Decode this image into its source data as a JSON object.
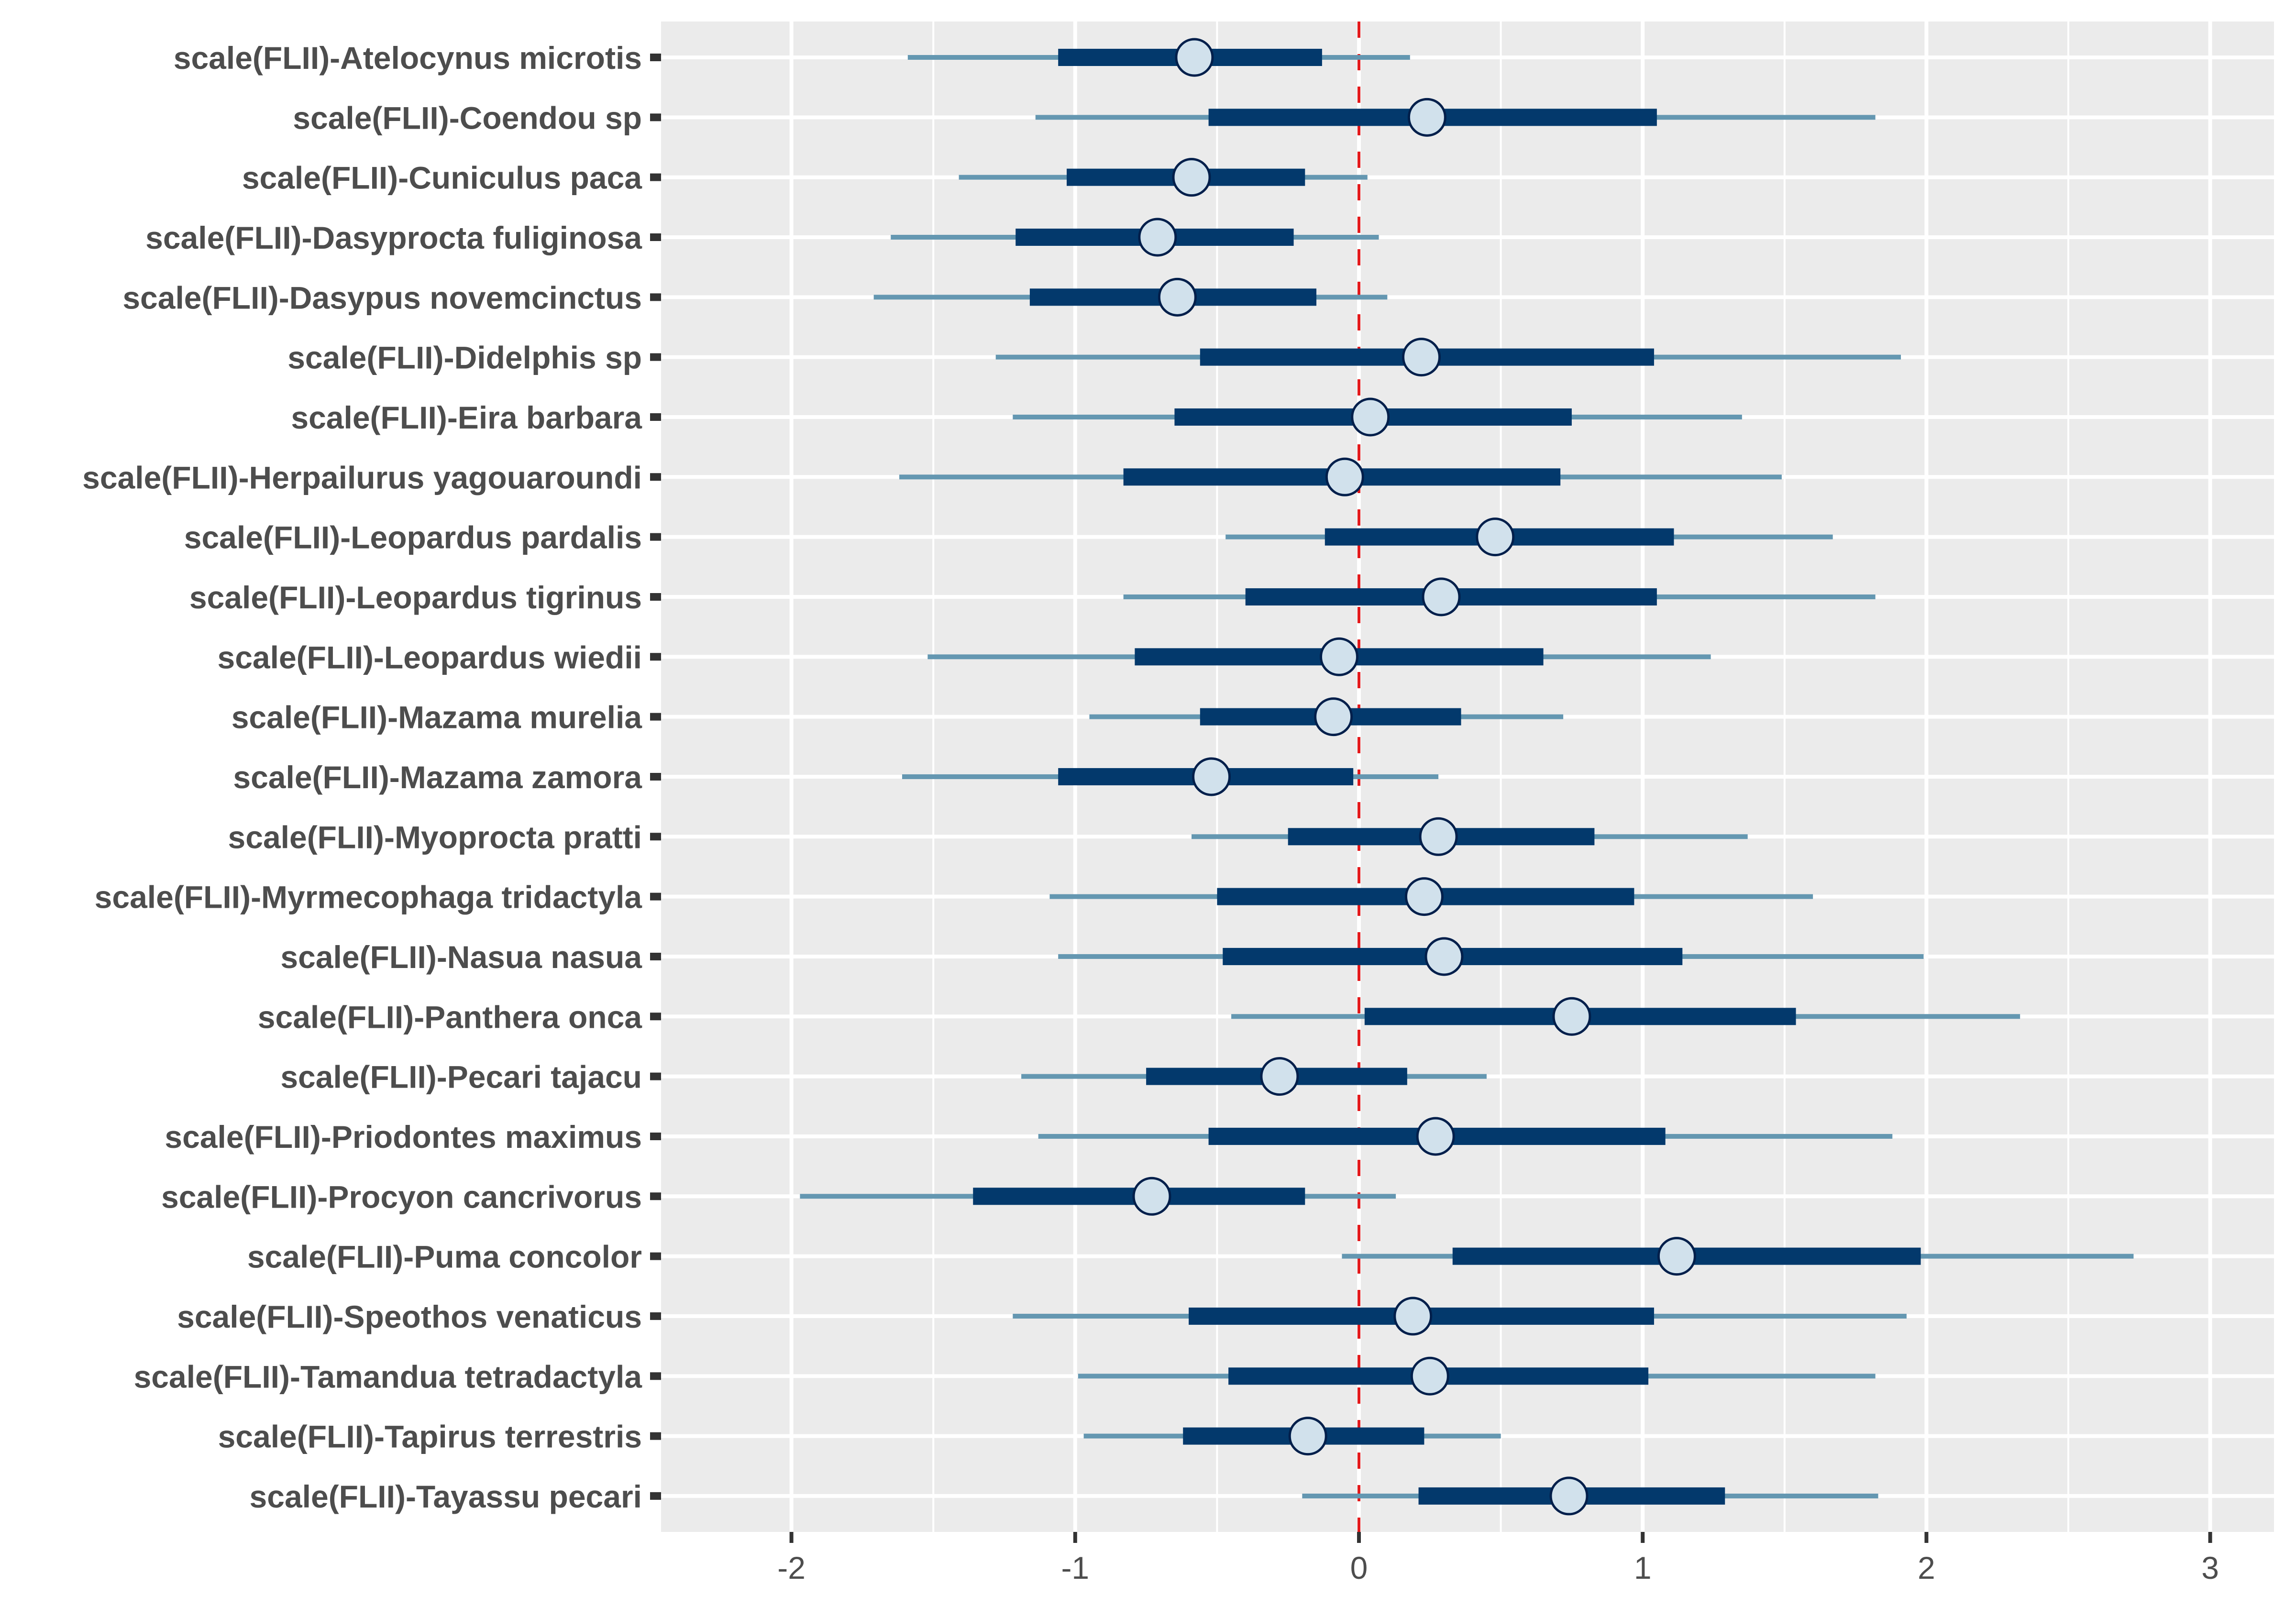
{
  "chart_data": {
    "type": "forest",
    "title": "",
    "xlabel": "",
    "ylabel": "",
    "xlim": [
      -2.45,
      3.25
    ],
    "xticks": [
      -2,
      -1,
      0,
      1,
      2,
      3
    ],
    "xtick_labels": [
      "-2",
      "-1",
      "0",
      "1",
      "2",
      "3"
    ],
    "grid": true,
    "reference_line": {
      "x": 0,
      "style": "dashed",
      "color": "#e41a1c"
    },
    "colors": {
      "panel_bg": "#ebebeb",
      "grid": "#ffffff",
      "outer_interval": "#6497b1",
      "inner_interval": "#03396c",
      "point_fill": "#d1e1ec",
      "point_stroke": "#011f4b",
      "text": "#4d4d4d",
      "tick": "#333333"
    },
    "series": [
      {
        "label": "scale(FLII)-Atelocynus microtis",
        "outer_low": -1.59,
        "inner_low": -1.06,
        "estimate": -0.58,
        "inner_high": -0.13,
        "outer_high": 0.18
      },
      {
        "label": "scale(FLII)-Coendou sp",
        "outer_low": -1.14,
        "inner_low": -0.53,
        "estimate": 0.24,
        "inner_high": 1.05,
        "outer_high": 1.82
      },
      {
        "label": "scale(FLII)-Cuniculus paca",
        "outer_low": -1.41,
        "inner_low": -1.03,
        "estimate": -0.59,
        "inner_high": -0.19,
        "outer_high": 0.03
      },
      {
        "label": "scale(FLII)-Dasyprocta fuliginosa",
        "outer_low": -1.65,
        "inner_low": -1.21,
        "estimate": -0.71,
        "inner_high": -0.23,
        "outer_high": 0.07
      },
      {
        "label": "scale(FLII)-Dasypus novemcinctus",
        "outer_low": -1.71,
        "inner_low": -1.16,
        "estimate": -0.64,
        "inner_high": -0.15,
        "outer_high": 0.1
      },
      {
        "label": "scale(FLII)-Didelphis sp",
        "outer_low": -1.28,
        "inner_low": -0.56,
        "estimate": 0.22,
        "inner_high": 1.04,
        "outer_high": 1.91
      },
      {
        "label": "scale(FLII)-Eira barbara",
        "outer_low": -1.22,
        "inner_low": -0.65,
        "estimate": 0.04,
        "inner_high": 0.75,
        "outer_high": 1.35
      },
      {
        "label": "scale(FLII)-Herpailurus yagouaroundi",
        "outer_low": -1.62,
        "inner_low": -0.83,
        "estimate": -0.05,
        "inner_high": 0.71,
        "outer_high": 1.49
      },
      {
        "label": "scale(FLII)-Leopardus pardalis",
        "outer_low": -0.47,
        "inner_low": -0.12,
        "estimate": 0.48,
        "inner_high": 1.11,
        "outer_high": 1.67
      },
      {
        "label": "scale(FLII)-Leopardus tigrinus",
        "outer_low": -0.83,
        "inner_low": -0.4,
        "estimate": 0.29,
        "inner_high": 1.05,
        "outer_high": 1.82
      },
      {
        "label": "scale(FLII)-Leopardus wiedii",
        "outer_low": -1.52,
        "inner_low": -0.79,
        "estimate": -0.07,
        "inner_high": 0.65,
        "outer_high": 1.24
      },
      {
        "label": "scale(FLII)-Mazama murelia",
        "outer_low": -0.95,
        "inner_low": -0.56,
        "estimate": -0.09,
        "inner_high": 0.36,
        "outer_high": 0.72
      },
      {
        "label": "scale(FLII)-Mazama zamora",
        "outer_low": -1.61,
        "inner_low": -1.06,
        "estimate": -0.52,
        "inner_high": -0.02,
        "outer_high": 0.28
      },
      {
        "label": "scale(FLII)-Myoprocta pratti",
        "outer_low": -0.59,
        "inner_low": -0.25,
        "estimate": 0.28,
        "inner_high": 0.83,
        "outer_high": 1.37
      },
      {
        "label": "scale(FLII)-Myrmecophaga tridactyla",
        "outer_low": -1.09,
        "inner_low": -0.5,
        "estimate": 0.23,
        "inner_high": 0.97,
        "outer_high": 1.6
      },
      {
        "label": "scale(FLII)-Nasua nasua",
        "outer_low": -1.06,
        "inner_low": -0.48,
        "estimate": 0.3,
        "inner_high": 1.14,
        "outer_high": 1.99
      },
      {
        "label": "scale(FLII)-Panthera onca",
        "outer_low": -0.45,
        "inner_low": 0.02,
        "estimate": 0.75,
        "inner_high": 1.54,
        "outer_high": 2.33
      },
      {
        "label": "scale(FLII)-Pecari tajacu",
        "outer_low": -1.19,
        "inner_low": -0.75,
        "estimate": -0.28,
        "inner_high": 0.17,
        "outer_high": 0.45
      },
      {
        "label": "scale(FLII)-Priodontes maximus",
        "outer_low": -1.13,
        "inner_low": -0.53,
        "estimate": 0.27,
        "inner_high": 1.08,
        "outer_high": 1.88
      },
      {
        "label": "scale(FLII)-Procyon cancrivorus",
        "outer_low": -1.97,
        "inner_low": -1.36,
        "estimate": -0.73,
        "inner_high": -0.19,
        "outer_high": 0.13
      },
      {
        "label": "scale(FLII)-Puma concolor",
        "outer_low": -0.06,
        "inner_low": 0.33,
        "estimate": 1.12,
        "inner_high": 1.98,
        "outer_high": 2.73
      },
      {
        "label": "scale(FLII)-Speothos venaticus",
        "outer_low": -1.22,
        "inner_low": -0.6,
        "estimate": 0.19,
        "inner_high": 1.04,
        "outer_high": 1.93
      },
      {
        "label": "scale(FLII)-Tamandua tetradactyla",
        "outer_low": -0.99,
        "inner_low": -0.46,
        "estimate": 0.25,
        "inner_high": 1.02,
        "outer_high": 1.82
      },
      {
        "label": "scale(FLII)-Tapirus terrestris",
        "outer_low": -0.97,
        "inner_low": -0.62,
        "estimate": -0.18,
        "inner_high": 0.23,
        "outer_high": 0.5
      },
      {
        "label": "scale(FLII)-Tayassu pecari",
        "outer_low": -0.2,
        "inner_low": 0.21,
        "estimate": 0.74,
        "inner_high": 1.29,
        "outer_high": 1.83
      }
    ]
  }
}
